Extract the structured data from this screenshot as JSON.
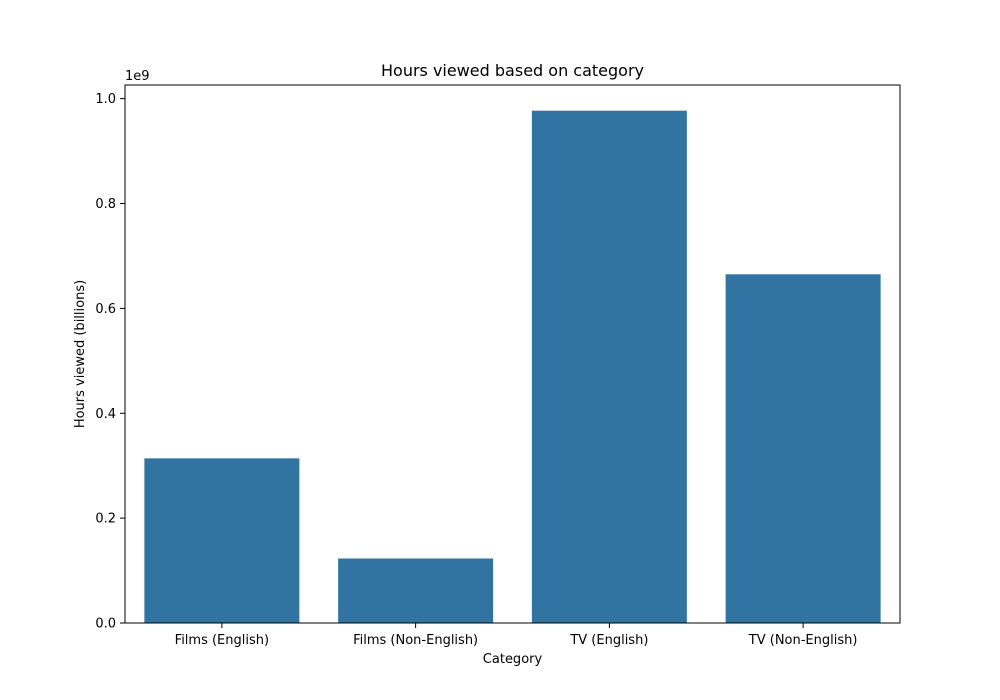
{
  "chart_data": {
    "type": "bar",
    "title": "Hours viewed based on category",
    "xlabel": "Category",
    "ylabel": "Hours viewed (billions)",
    "offset_text": "1e9",
    "categories": [
      "Films (English)",
      "Films (Non-English)",
      "TV (English)",
      "TV (Non-English)"
    ],
    "values": [
      314000000,
      123000000,
      977000000,
      665000000
    ],
    "ylim": [
      0,
      1026000000
    ],
    "yticks": [
      0,
      200000000,
      400000000,
      600000000,
      800000000,
      1000000000
    ],
    "ytick_labels": [
      "0.0",
      "0.2",
      "0.4",
      "0.6",
      "0.8",
      "1.0"
    ],
    "grid": false,
    "bar_color": "#3274a1"
  }
}
